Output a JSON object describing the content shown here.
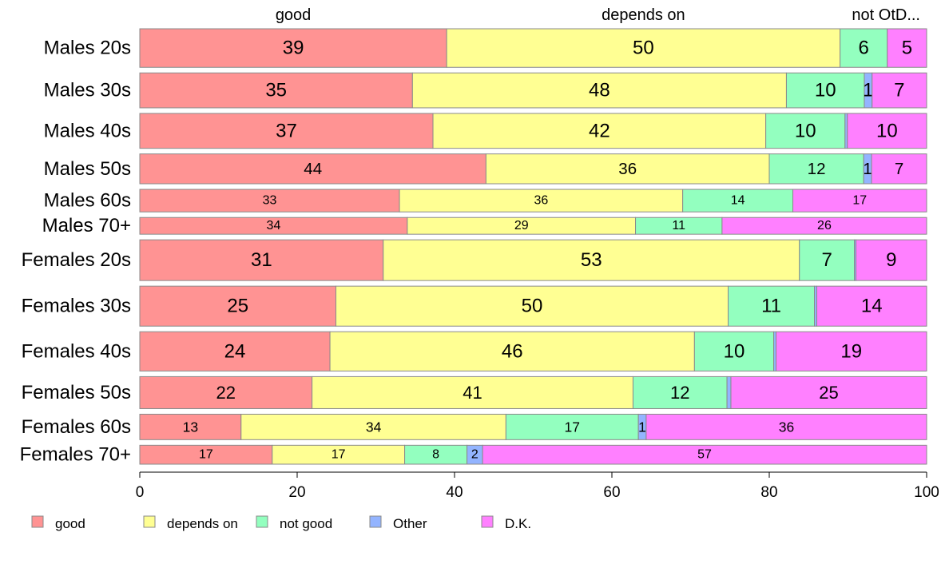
{
  "chart_data": {
    "type": "bar",
    "orientation": "horizontal",
    "stacked": true,
    "categories": [
      "Males 20s",
      "Males 30s",
      "Males 40s",
      "Males 50s",
      "Males 60s",
      "Males 70+",
      "Females 20s",
      "Females 30s",
      "Females 40s",
      "Females 50s",
      "Females 60s",
      "Females 70+"
    ],
    "series": [
      {
        "name": "good",
        "color": "#ff9393",
        "values": [
          39,
          35,
          37,
          44,
          33,
          34,
          31,
          25,
          24,
          22,
          13,
          17
        ],
        "show_labels": [
          true,
          true,
          true,
          true,
          true,
          true,
          true,
          true,
          true,
          true,
          true,
          true
        ]
      },
      {
        "name": "depends on",
        "color": "#ffff93",
        "values": [
          50,
          48,
          42,
          36,
          36,
          29,
          53,
          50,
          46,
          41,
          34,
          17
        ],
        "show_labels": [
          true,
          true,
          true,
          true,
          true,
          true,
          true,
          true,
          true,
          true,
          true,
          true
        ]
      },
      {
        "name": "not good",
        "color": "#93ffbf",
        "values": [
          6,
          10,
          10,
          12,
          14,
          11,
          7,
          11,
          10,
          12,
          17,
          8
        ],
        "show_labels": [
          true,
          true,
          true,
          true,
          true,
          true,
          true,
          true,
          true,
          true,
          true,
          true
        ]
      },
      {
        "name": "Other",
        "color": "#93b4ff",
        "values": [
          0,
          1,
          0.3,
          1,
          0,
          0,
          0.2,
          0.3,
          0.3,
          0.5,
          1,
          2
        ],
        "show_labels": [
          false,
          true,
          false,
          true,
          false,
          false,
          false,
          false,
          false,
          false,
          true,
          true
        ]
      },
      {
        "name": "D.K.",
        "color": "#ff80ff",
        "values": [
          5,
          7,
          10,
          7,
          17,
          26,
          9,
          14,
          19,
          25,
          36,
          57
        ],
        "show_labels": [
          true,
          true,
          true,
          true,
          true,
          true,
          true,
          true,
          true,
          true,
          true,
          true
        ]
      }
    ],
    "bar_weights": [
      53,
      48,
      48,
      41,
      31,
      23,
      56,
      55,
      54,
      44,
      35,
      26
    ],
    "top_labels": [
      "good",
      "depends on",
      "not OtD..."
    ],
    "x_ticks": [
      0,
      20,
      40,
      60,
      80,
      100
    ],
    "xlim": [
      0,
      100
    ],
    "legend": [
      "good",
      "depends on",
      "not good",
      "Other",
      "D.K."
    ],
    "legend_position": "bottom",
    "grid": false
  }
}
